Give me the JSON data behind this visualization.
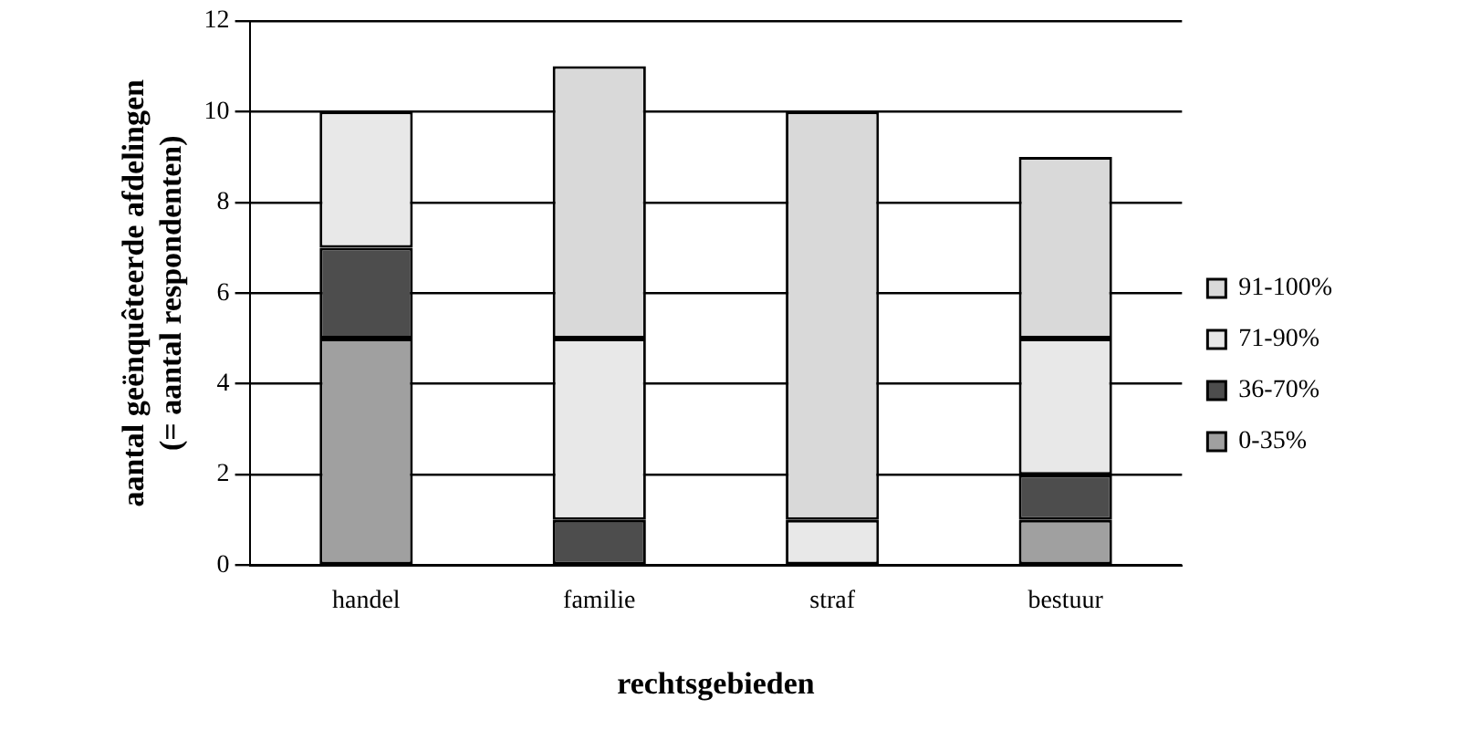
{
  "chart_data": {
    "type": "bar",
    "stacked": true,
    "xlabel": "rechtsgebieden",
    "ylabel": "aantal geënquêteerde afdelingen\n(= aantal respondenten)",
    "categories": [
      "handel",
      "familie",
      "straf",
      "bestuur"
    ],
    "series": [
      {
        "name": "0-35%",
        "color": "#a0a0a0",
        "values": [
          5,
          0,
          0,
          1
        ]
      },
      {
        "name": "36-70%",
        "color": "#4d4d4d",
        "values": [
          2,
          1,
          0,
          1
        ]
      },
      {
        "name": "71-90%",
        "color": "#e8e8e8",
        "values": [
          3,
          4,
          1,
          3
        ]
      },
      {
        "name": "91-100%",
        "color": "#d9d9d9",
        "values": [
          0,
          6,
          9,
          4
        ]
      }
    ],
    "ylim": [
      0,
      12
    ],
    "yticks": [
      0,
      2,
      4,
      6,
      8,
      10,
      12
    ],
    "grid": "y",
    "legend": "right"
  }
}
